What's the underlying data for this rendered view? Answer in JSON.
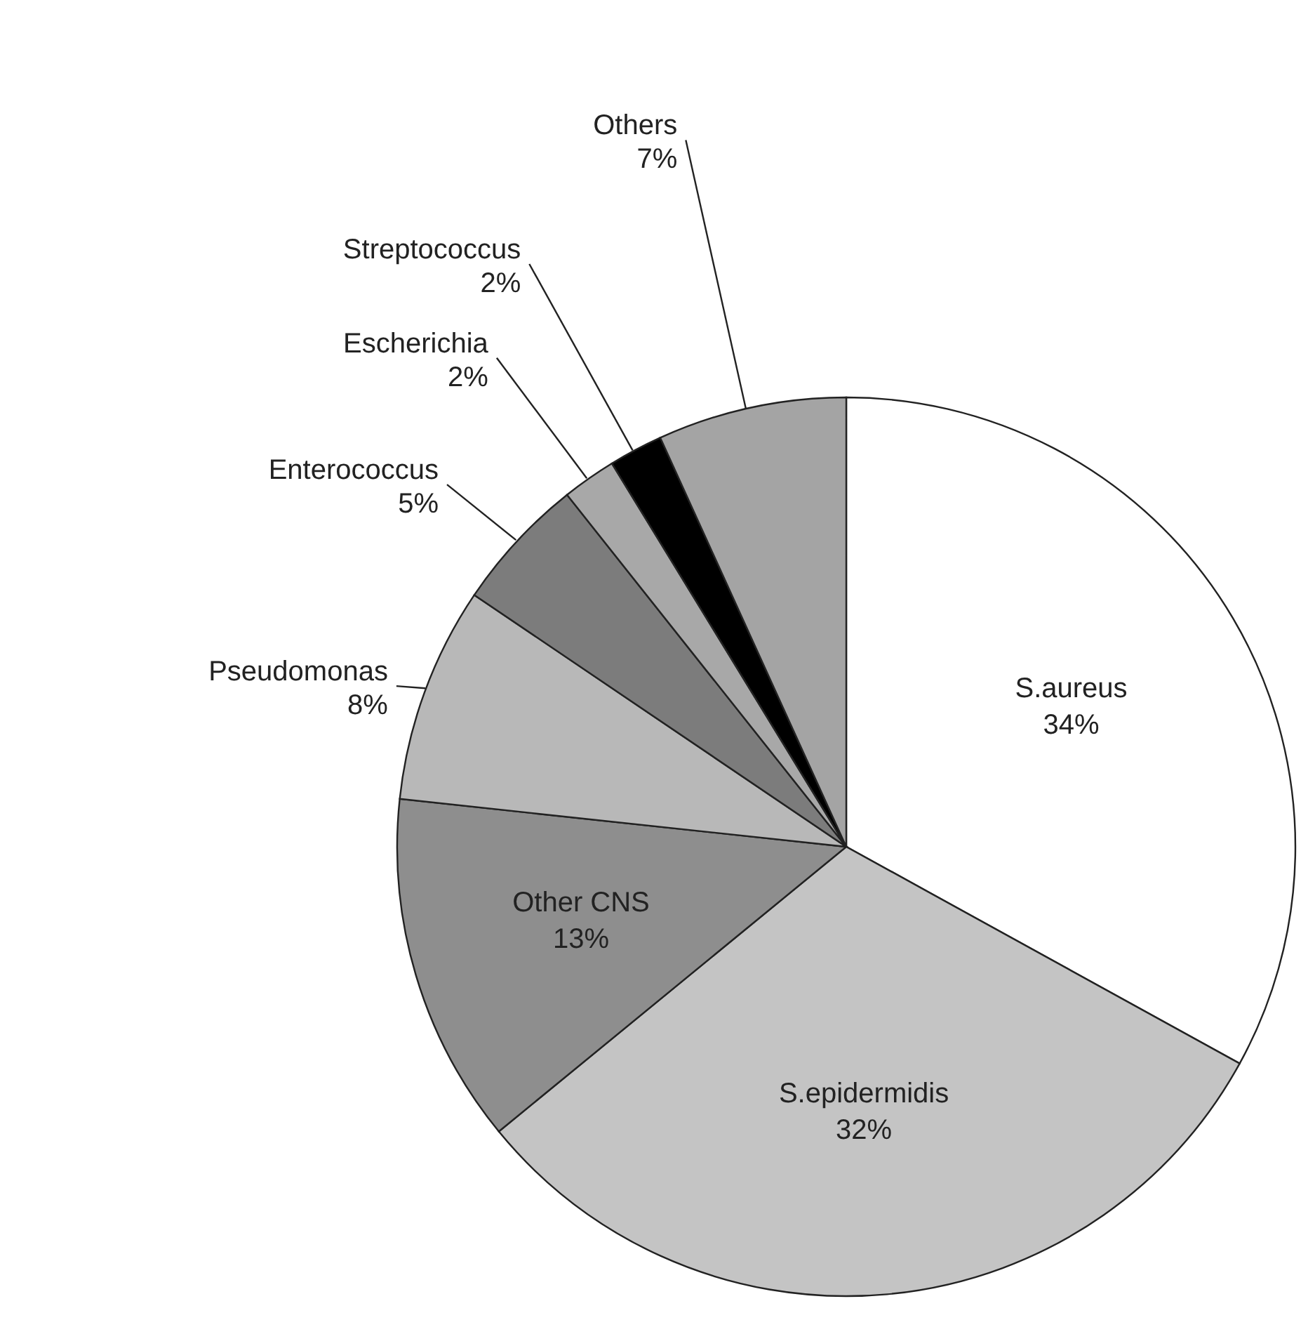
{
  "chart_data": {
    "type": "pie",
    "categories": [
      "S.aureus",
      "S.epidermidis",
      "Other CNS",
      "Pseudomonas",
      "Enterococcus",
      "Escherichia",
      "Streptococcus",
      "Others"
    ],
    "values": [
      34,
      32,
      13,
      8,
      5,
      2,
      2,
      7
    ],
    "value_labels": [
      "34%",
      "32%",
      "13%",
      "8%",
      "5%",
      "2%",
      "2%",
      "7%"
    ],
    "colors": [
      "#ffffff",
      "#c4c4c4",
      "#8e8e8e",
      "#b8b8b8",
      "#7c7c7c",
      "#a8a8a8",
      "#000000",
      "#a4a4a4"
    ],
    "legend": false
  }
}
